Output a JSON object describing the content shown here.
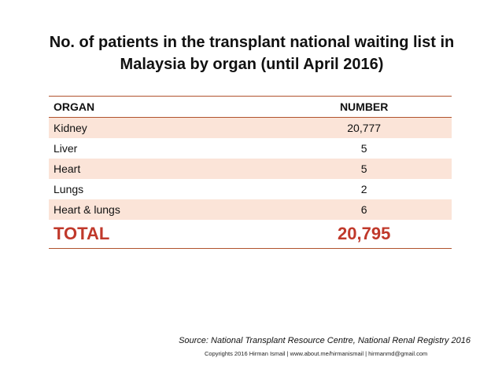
{
  "title": {
    "line1": "No. of patients in the transplant national waiting list in",
    "line2": "Malaysia by organ (until April 2016)"
  },
  "table": {
    "headers": [
      "ORGAN",
      "NUMBER"
    ],
    "rows": [
      {
        "organ": "Kidney",
        "number": "20,777"
      },
      {
        "organ": "Liver",
        "number": "5"
      },
      {
        "organ": "Heart",
        "number": "5"
      },
      {
        "organ": "Lungs",
        "number": "2"
      },
      {
        "organ": "Heart & lungs",
        "number": "6"
      }
    ],
    "total": {
      "label": "TOTAL",
      "number": "20,795"
    }
  },
  "source": "Source: National Transplant Resource Centre, National Renal Registry 2016",
  "copyright": "Copyrights 2016 Hirman Ismail | www.about.me/hirmanismail | hirmanmd@gmail.com",
  "colors": {
    "border": "#b0522d",
    "row_shade": "#fbe4d8",
    "total_text": "#c0392b"
  }
}
